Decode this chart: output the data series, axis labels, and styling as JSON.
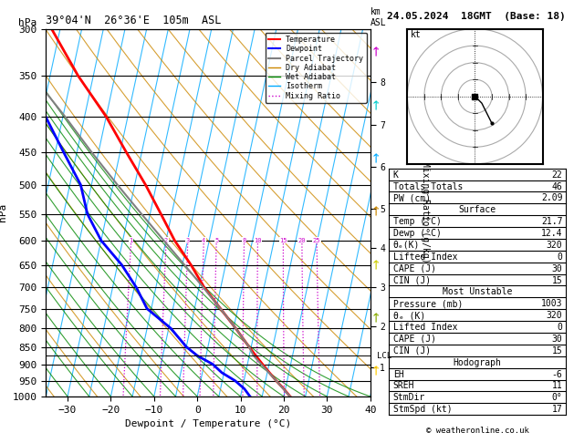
{
  "title_left": "39°04'N  26°36'E  105m  ASL",
  "title_right": "24.05.2024  18GMT  (Base: 18)",
  "xlabel": "Dewpoint / Temperature (°C)",
  "pressure_levels": [
    300,
    350,
    400,
    450,
    500,
    550,
    600,
    650,
    700,
    750,
    800,
    850,
    900,
    950,
    1000
  ],
  "temp_min": -35,
  "temp_max": 40,
  "temp_ticks": [
    -30,
    -20,
    -10,
    0,
    10,
    20,
    30,
    40
  ],
  "p_min": 300,
  "p_max": 1000,
  "skew_factor": 35,
  "km_ticks": [
    1,
    2,
    3,
    4,
    5,
    6,
    7,
    8
  ],
  "km_pressures": [
    908,
    795,
    700,
    615,
    540,
    472,
    411,
    357
  ],
  "lcl_pressure": 875,
  "mixing_ratios": [
    1,
    2,
    3,
    4,
    5,
    8,
    10,
    15,
    20,
    25
  ],
  "temp_profile_p": [
    1003,
    975,
    950,
    925,
    900,
    875,
    850,
    800,
    750,
    700,
    650,
    600,
    550,
    500,
    450,
    400,
    350,
    300
  ],
  "temp_profile_t": [
    21.7,
    19.6,
    17.5,
    15.5,
    13.5,
    11.5,
    9.5,
    5.5,
    1.0,
    -3.8,
    -8.0,
    -13.0,
    -17.5,
    -22.5,
    -28.5,
    -35.0,
    -43.5,
    -52.0
  ],
  "dewp_profile_p": [
    1003,
    975,
    950,
    925,
    900,
    875,
    850,
    800,
    750,
    700,
    650,
    600,
    550,
    500,
    450,
    400,
    350,
    300
  ],
  "dewp_profile_t": [
    12.4,
    10.5,
    8.0,
    4.5,
    2.0,
    -2.0,
    -5.0,
    -9.5,
    -16.0,
    -19.5,
    -24.0,
    -30.0,
    -34.5,
    -37.5,
    -43.0,
    -49.0,
    -57.0,
    -65.0
  ],
  "parcel_profile_p": [
    1003,
    950,
    900,
    875,
    850,
    800,
    750,
    700,
    650,
    600,
    550,
    500,
    450,
    400,
    350,
    300
  ],
  "parcel_profile_t": [
    21.7,
    17.5,
    13.2,
    11.0,
    9.5,
    5.5,
    1.0,
    -4.0,
    -9.5,
    -15.5,
    -22.0,
    -29.0,
    -36.5,
    -44.5,
    -54.0,
    -63.5
  ],
  "color_temp": "#ff0000",
  "color_dewp": "#0000ff",
  "color_parcel": "#808080",
  "color_dry_adiabat": "#cc8800",
  "color_wet_adiabat": "#008800",
  "color_isotherm": "#00aaff",
  "color_mixing": "#cc00cc",
  "hodo_u": [
    0,
    2,
    5
  ],
  "hodo_v": [
    0,
    -2,
    -8
  ],
  "info_K": "22",
  "info_TT": "46",
  "info_PW": "2.09",
  "info_surf_temp": "21.7",
  "info_surf_dewp": "12.4",
  "info_surf_theta": "320",
  "info_surf_li": "0",
  "info_surf_cape": "30",
  "info_surf_cin": "15",
  "info_mu_pres": "1003",
  "info_mu_theta": "320",
  "info_mu_li": "0",
  "info_mu_cape": "30",
  "info_mu_cin": "15",
  "info_eh": "-6",
  "info_sreh": "11",
  "info_stmdir": "0°",
  "info_stmspd": "17"
}
